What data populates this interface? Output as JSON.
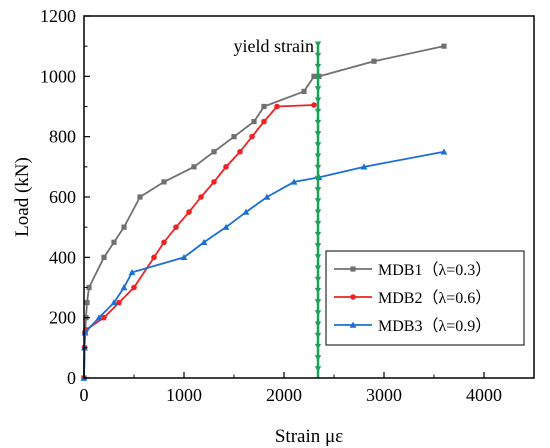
{
  "chart_data": {
    "type": "line",
    "xlabel": "Strain  με",
    "ylabel": "Load (kN)",
    "xlim": [
      0,
      4500
    ],
    "ylim": [
      0,
      1200
    ],
    "xticks": [
      0,
      1000,
      2000,
      3000,
      4000
    ],
    "yticks": [
      0,
      200,
      400,
      600,
      800,
      1000,
      1200
    ],
    "legend_position": "lower-right",
    "grid": false,
    "series": [
      {
        "name": "MDB1（λ=0.3）",
        "color": "#707070",
        "marker": "square",
        "x": [
          0,
          5,
          10,
          20,
          30,
          50,
          200,
          300,
          400,
          560,
          800,
          1100,
          1300,
          1500,
          1700,
          1800,
          2200,
          2300,
          2350,
          2900,
          3600
        ],
        "y": [
          0,
          100,
          150,
          200,
          250,
          300,
          400,
          450,
          500,
          600,
          650,
          700,
          750,
          800,
          850,
          900,
          950,
          1000,
          1000,
          1050,
          1100
        ]
      },
      {
        "name": "MDB2（λ=0.6）",
        "color": "#ee2222",
        "marker": "circle",
        "x": [
          0,
          5,
          10,
          20,
          200,
          350,
          500,
          700,
          800,
          920,
          1050,
          1170,
          1300,
          1420,
          1560,
          1680,
          1800,
          1930,
          2300
        ],
        "y": [
          0,
          100,
          150,
          160,
          200,
          250,
          300,
          400,
          450,
          500,
          550,
          600,
          650,
          700,
          750,
          800,
          850,
          900,
          905
        ]
      },
      {
        "name": "MDB3（λ=0.9）",
        "color": "#1a6fd6",
        "marker": "triangle",
        "x": [
          0,
          5,
          10,
          150,
          300,
          400,
          480,
          1000,
          1200,
          1420,
          1620,
          1830,
          2100,
          2350,
          2800,
          3600
        ],
        "y": [
          0,
          100,
          150,
          200,
          250,
          300,
          350,
          400,
          450,
          500,
          550,
          600,
          650,
          665,
          700,
          750
        ]
      }
    ],
    "annotations": [
      {
        "text": "yield strain",
        "x": 2340,
        "color": "#1aa05a"
      }
    ]
  }
}
